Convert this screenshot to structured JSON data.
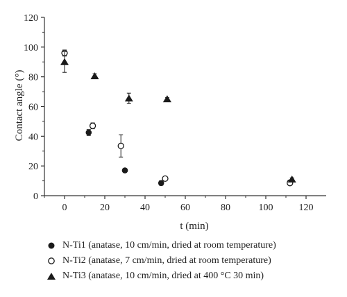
{
  "chart_data": {
    "type": "scatter",
    "title": "",
    "xlabel": "t (min)",
    "ylabel": "Contact angle (°)",
    "xlim": [
      -10,
      130
    ],
    "ylim": [
      0,
      120
    ],
    "xticks": [
      "0",
      "20",
      "40",
      "60",
      "80",
      "100",
      "120"
    ],
    "yticks": [
      "0",
      "20",
      "40",
      "60",
      "80",
      "100",
      "120"
    ],
    "legend_position": "bottom",
    "series": [
      {
        "name": "N-Ti1 (anatase, 10 cm/min, dried at room temperature)",
        "marker": "filled-circle",
        "points": [
          {
            "x": 0,
            "y": 96,
            "err": 2
          },
          {
            "x": 12,
            "y": 42.5,
            "err": 2
          },
          {
            "x": 30,
            "y": 17,
            "err": 0
          },
          {
            "x": 48,
            "y": 8.5,
            "err": 1.5
          },
          {
            "x": 112,
            "y": 9,
            "err": 1
          }
        ]
      },
      {
        "name": "N-Ti2 (anatase, 7 cm/min, dried at room temperature)",
        "marker": "open-circle",
        "points": [
          {
            "x": 0,
            "y": 96,
            "err": 2
          },
          {
            "x": 14,
            "y": 47,
            "err": 2
          },
          {
            "x": 28,
            "y": 33.5,
            "err": 7.5
          },
          {
            "x": 50,
            "y": 11.5,
            "err": 1
          },
          {
            "x": 112,
            "y": 8.5,
            "err": 1
          }
        ]
      },
      {
        "name": "N-Ti3 (anatase, 10 cm/min, dried at 400 °C 30 min)",
        "marker": "filled-triangle",
        "points": [
          {
            "x": 0,
            "y": 90,
            "err": 7
          },
          {
            "x": 15,
            "y": 80.5,
            "err": 1.5
          },
          {
            "x": 32,
            "y": 65.5,
            "err": 3.5
          },
          {
            "x": 51,
            "y": 65,
            "err": 1
          },
          {
            "x": 113,
            "y": 11,
            "err": 1
          }
        ]
      }
    ]
  },
  "legend": {
    "items": [
      "N-Ti1 (anatase, 10 cm/min, dried at room temperature)",
      "N-Ti2 (anatase, 7 cm/min, dried at room temperature)",
      "N-Ti3 (anatase, 10 cm/min, dried at 400 °C 30 min)"
    ]
  },
  "colors": {
    "marker": "#1a1a1a",
    "axis": "#333333",
    "background": "#ffffff"
  }
}
